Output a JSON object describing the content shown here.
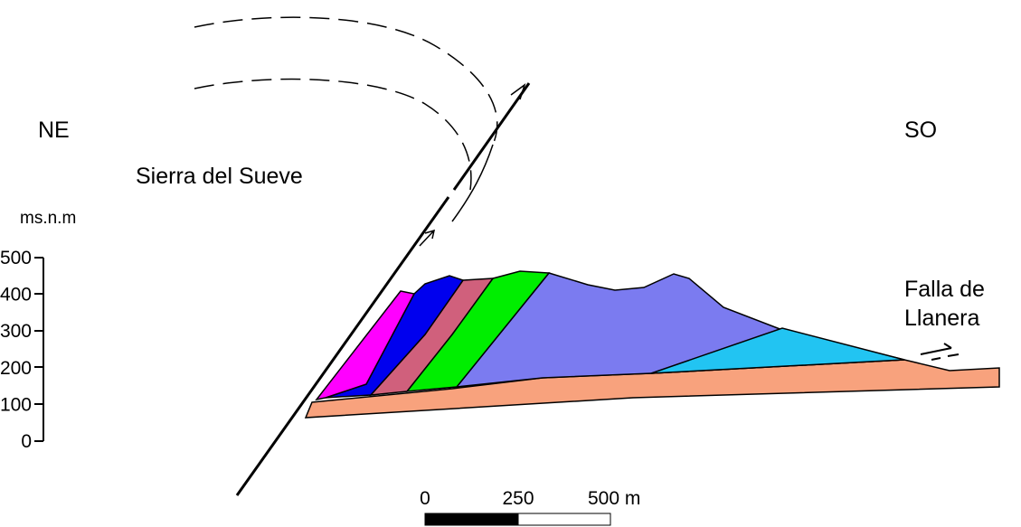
{
  "orientation_left": "NE",
  "orientation_right": "SO",
  "place_label": "Sierra del Sueve",
  "elevation_axis": {
    "label": "ms.n.m",
    "ticks": [
      "500",
      "400",
      "300",
      "200",
      "100",
      "0"
    ]
  },
  "fault_label": [
    "Falla de",
    "Llanera"
  ],
  "scale_bar": {
    "labels": [
      "0",
      "250",
      "500 m"
    ]
  }
}
